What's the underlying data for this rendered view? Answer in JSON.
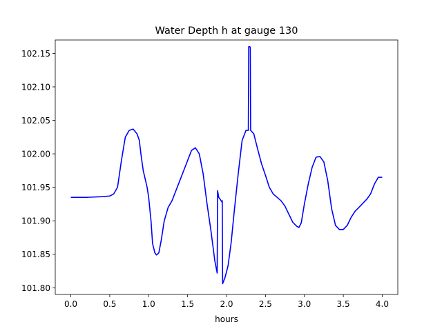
{
  "chart_data": {
    "type": "line",
    "title": "Water Depth h at gauge 130",
    "xlabel": "hours",
    "ylabel": "",
    "xlim": [
      -0.2,
      4.2
    ],
    "ylim": [
      101.79,
      102.17
    ],
    "xticks": [
      0.0,
      0.5,
      1.0,
      1.5,
      2.0,
      2.5,
      3.0,
      3.5,
      4.0
    ],
    "xtick_labels": [
      "0.0",
      "0.5",
      "1.0",
      "1.5",
      "2.0",
      "2.5",
      "3.0",
      "3.5",
      "4.0"
    ],
    "yticks": [
      101.8,
      101.85,
      101.9,
      101.95,
      102.0,
      102.05,
      102.1,
      102.15
    ],
    "ytick_labels": [
      "101.80",
      "101.85",
      "101.90",
      "101.95",
      "102.00",
      "102.05",
      "102.10",
      "102.15"
    ],
    "grid": false,
    "series": [
      {
        "color": "#0000ff",
        "x": [
          0.0,
          0.2,
          0.4,
          0.5,
          0.55,
          0.6,
          0.65,
          0.7,
          0.75,
          0.8,
          0.85,
          0.88,
          0.9,
          0.93,
          0.95,
          0.98,
          1.0,
          1.03,
          1.05,
          1.08,
          1.1,
          1.13,
          1.16,
          1.2,
          1.25,
          1.3,
          1.35,
          1.4,
          1.45,
          1.5,
          1.55,
          1.6,
          1.65,
          1.7,
          1.75,
          1.8,
          1.85,
          1.88,
          1.885,
          1.9,
          1.92,
          1.94,
          1.945,
          1.95,
          1.98,
          2.02,
          2.06,
          2.1,
          2.15,
          2.2,
          2.25,
          2.28,
          2.285,
          2.3,
          2.305,
          2.31,
          2.35,
          2.4,
          2.45,
          2.5,
          2.55,
          2.6,
          2.65,
          2.7,
          2.75,
          2.8,
          2.85,
          2.9,
          2.93,
          2.96,
          3.0,
          3.05,
          3.1,
          3.15,
          3.2,
          3.25,
          3.3,
          3.35,
          3.4,
          3.45,
          3.5,
          3.55,
          3.6,
          3.65,
          3.7,
          3.75,
          3.8,
          3.85,
          3.9,
          3.95,
          4.0
        ],
        "values": [
          101.935,
          101.935,
          101.936,
          101.937,
          101.94,
          101.95,
          101.99,
          102.025,
          102.035,
          102.037,
          102.03,
          102.02,
          102.0,
          101.975,
          101.965,
          101.95,
          101.935,
          101.9,
          101.866,
          101.852,
          101.849,
          101.852,
          101.87,
          101.9,
          101.92,
          101.93,
          101.945,
          101.96,
          101.975,
          101.99,
          102.005,
          102.009,
          102.0,
          101.97,
          101.925,
          101.885,
          101.84,
          101.822,
          101.945,
          101.935,
          101.932,
          101.928,
          101.93,
          101.806,
          101.815,
          101.833,
          101.868,
          101.915,
          101.97,
          102.02,
          102.035,
          102.035,
          102.16,
          102.16,
          102.158,
          102.035,
          102.03,
          102.007,
          101.985,
          101.968,
          101.95,
          101.94,
          101.935,
          101.93,
          101.922,
          101.91,
          101.898,
          101.892,
          101.89,
          101.897,
          101.925,
          101.955,
          101.98,
          101.995,
          101.996,
          101.988,
          101.96,
          101.918,
          101.893,
          101.887,
          101.887,
          101.893,
          101.905,
          101.914,
          101.92,
          101.926,
          101.932,
          101.94,
          101.955,
          101.965,
          101.965
        ]
      }
    ]
  }
}
